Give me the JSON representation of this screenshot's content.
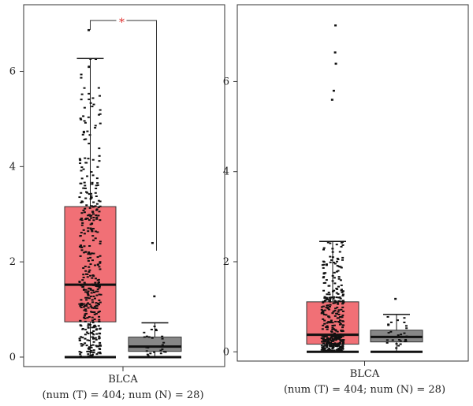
{
  "chart_data": [
    {
      "type": "box",
      "panel": "left",
      "category": "BLCA",
      "subtitle": "(num (T) = 404; num (N) = 28)",
      "ylim": [
        -0.1,
        7.3
      ],
      "yticks": [
        0,
        2,
        4,
        6
      ],
      "significance": "*",
      "colors": {
        "tumor": "#f0646a",
        "normal": "#7d7d7d"
      },
      "series": [
        {
          "name": "T",
          "n": 404,
          "q1": 0.74,
          "median": 1.52,
          "q3": 3.16,
          "whisker_low": 0.0,
          "whisker_high": 6.27,
          "outliers": [
            6.87
          ]
        },
        {
          "name": "N",
          "n": 28,
          "q1": 0.12,
          "median": 0.22,
          "q3": 0.42,
          "whisker_low": 0.0,
          "whisker_high": 0.72,
          "outliers": [
            1.28,
            2.4
          ]
        }
      ]
    },
    {
      "type": "box",
      "panel": "right",
      "category": "BLCA",
      "subtitle": "(num (T) = 404; num (N) = 28)",
      "ylim": [
        -0.1,
        7.6
      ],
      "yticks": [
        0,
        2,
        4,
        6
      ],
      "colors": {
        "tumor": "#f0646a",
        "normal": "#7d7d7d"
      },
      "series": [
        {
          "name": "T",
          "n": 404,
          "q1": 0.17,
          "median": 0.38,
          "q3": 1.11,
          "whisker_low": 0.0,
          "whisker_high": 2.45,
          "outliers": [
            7.25,
            6.65,
            6.4,
            5.8,
            5.6
          ]
        },
        {
          "name": "N",
          "n": 28,
          "q1": 0.22,
          "median": 0.33,
          "q3": 0.48,
          "whisker_low": 0.0,
          "whisker_high": 0.83,
          "outliers": [
            1.18
          ]
        }
      ]
    }
  ]
}
